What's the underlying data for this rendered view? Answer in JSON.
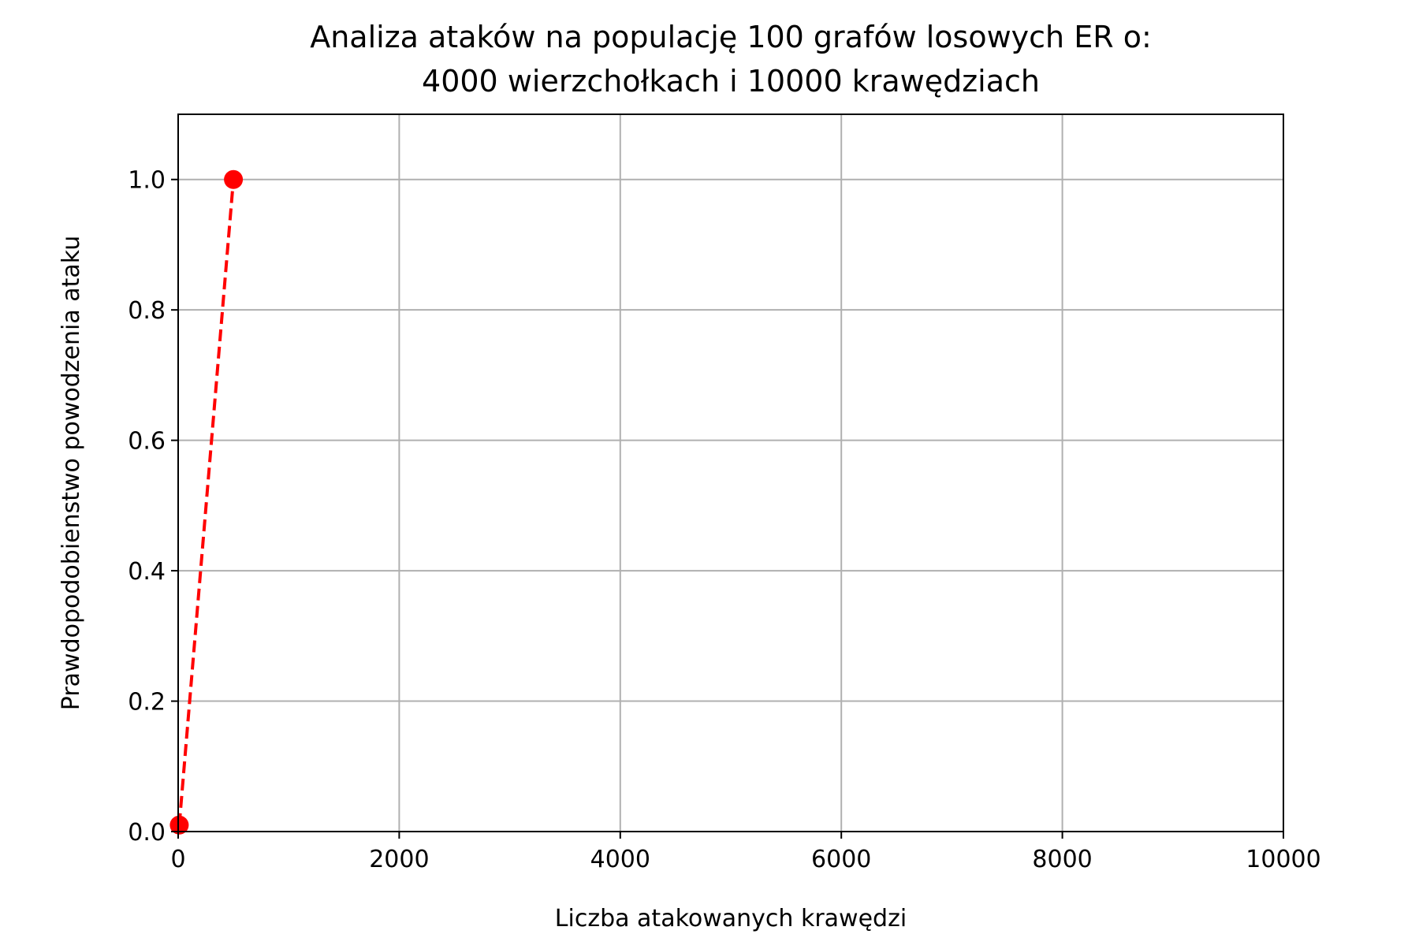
{
  "chart_data": {
    "type": "line",
    "title_lines": [
      "Analiza ataków na populację 100 grafów losowych ER o:",
      "4000 wierzchołkach i 10000 krawędziach"
    ],
    "xlabel": "Liczba atakowanych krawędzi",
    "ylabel": "Prawdopodobienstwo powodzenia ataku",
    "xlim": [
      0,
      10000
    ],
    "ylim": [
      0,
      1.1
    ],
    "x_ticks": [
      0,
      2000,
      4000,
      6000,
      8000,
      10000
    ],
    "x_tick_labels": [
      "0",
      "2000",
      "4000",
      "6000",
      "8000",
      "10000"
    ],
    "y_ticks": [
      0.0,
      0.2,
      0.4,
      0.6,
      0.8,
      1.0
    ],
    "y_tick_labels": [
      "0.0",
      "0.2",
      "0.4",
      "0.6",
      "0.8",
      "1.0"
    ],
    "grid": true,
    "series": [
      {
        "x": [
          10,
          500
        ],
        "y": [
          0.01,
          1.0
        ],
        "color": "#ff0000",
        "line_style": "dashed",
        "marker": "circle"
      }
    ]
  }
}
